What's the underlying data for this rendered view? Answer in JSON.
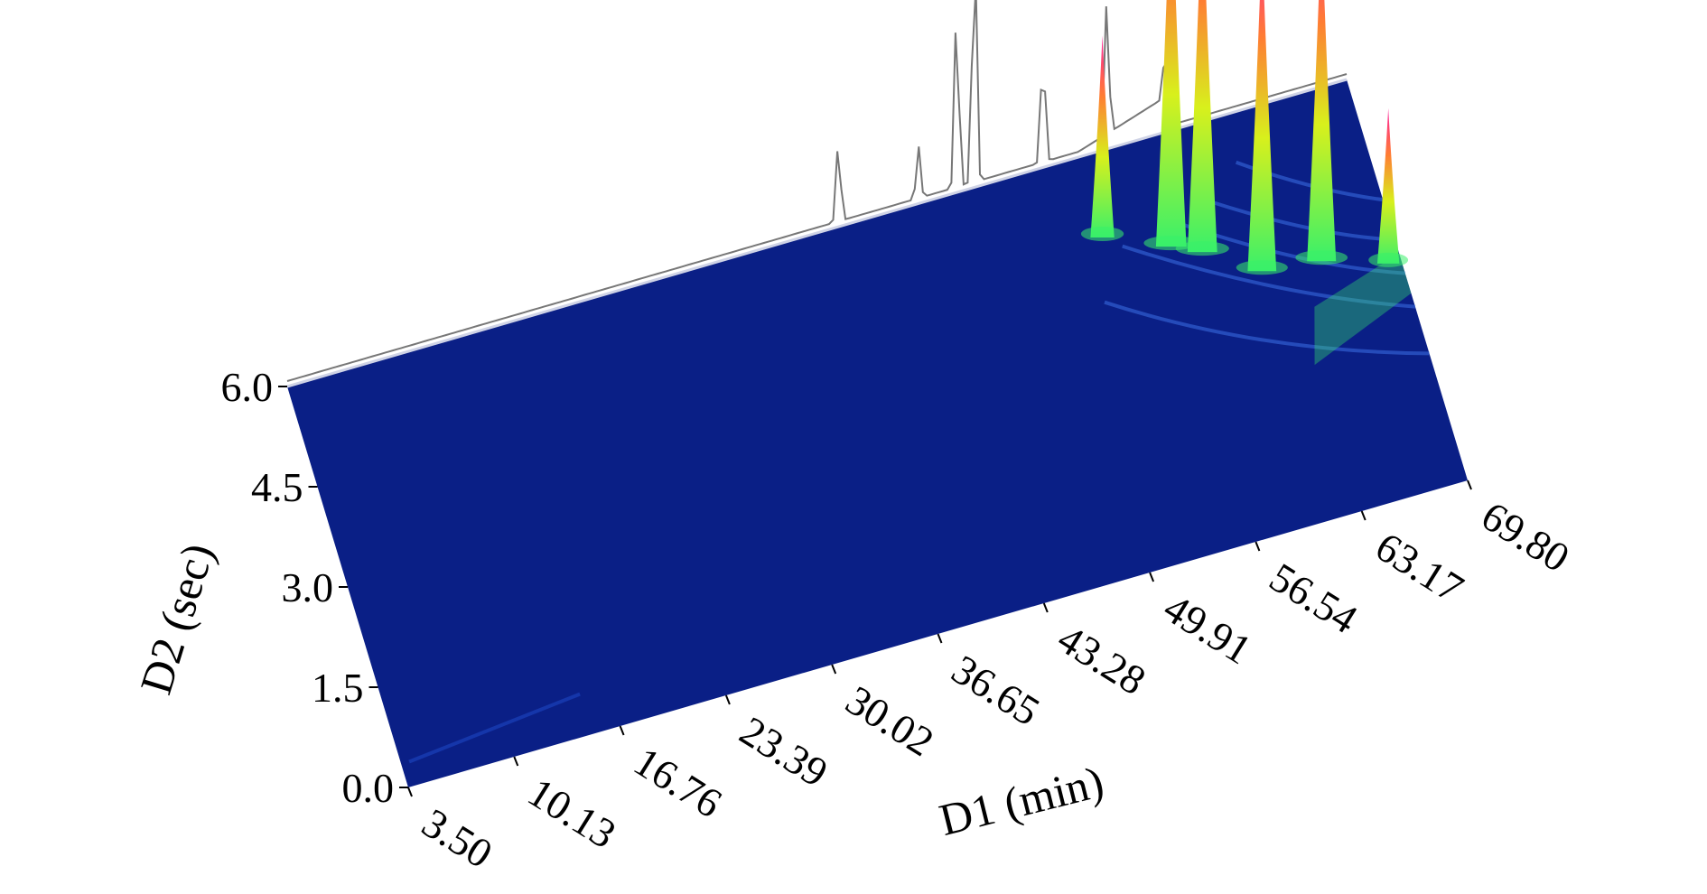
{
  "chart_data": {
    "type": "surface-3d",
    "title": "",
    "xlabel": "D1 (min)",
    "ylabel": "D2 (sec)",
    "x_ticks": [
      "3.50",
      "10.13",
      "16.76",
      "23.39",
      "30.02",
      "36.65",
      "43.28",
      "49.91",
      "56.54",
      "63.17",
      "69.80"
    ],
    "y_ticks": [
      "0.0",
      "1.5",
      "3.0",
      "4.5",
      "6.0"
    ],
    "xlim": [
      3.5,
      69.8
    ],
    "ylim": [
      0.0,
      6.0
    ],
    "grid": false,
    "legend": "none",
    "colors": {
      "plane": "#0a1f86",
      "plane_light": "#1f49c8",
      "low": "#39f06a",
      "mid": "#d8f01c",
      "high": "#ff7d33",
      "peak": "#ff1f9c",
      "trace": "#777777"
    },
    "peaks": [
      {
        "x": 53.0,
        "y": 4.8,
        "intensity": 0.52
      },
      {
        "x": 56.8,
        "y": 4.4,
        "intensity": 0.98
      },
      {
        "x": 58.5,
        "y": 4.2,
        "intensity": 0.93
      },
      {
        "x": 61.6,
        "y": 3.7,
        "intensity": 0.86
      },
      {
        "x": 65.2,
        "y": 3.6,
        "intensity": 0.88
      },
      {
        "x": 69.0,
        "y": 3.3,
        "intensity": 0.4
      }
    ],
    "trace_peaks": [
      {
        "x": 38.0,
        "intensity": 0.32
      },
      {
        "x": 43.0,
        "intensity": 0.2
      },
      {
        "x": 45.4,
        "intensity": 0.72
      },
      {
        "x": 46.5,
        "intensity": 0.98
      },
      {
        "x": 50.8,
        "intensity": 0.45
      },
      {
        "x": 54.8,
        "intensity": 0.52
      },
      {
        "x": 58.5,
        "intensity": 0.3
      }
    ]
  }
}
